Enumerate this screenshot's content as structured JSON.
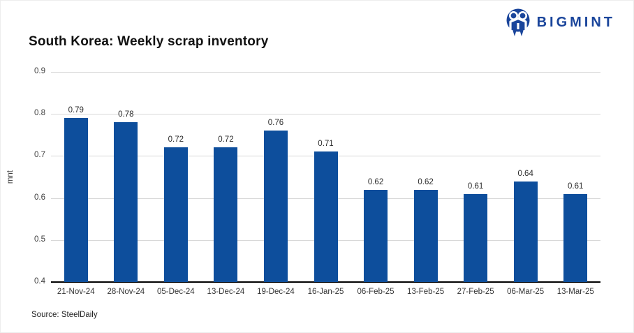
{
  "header": {
    "title": "South Korea: Weekly scrap inventory",
    "logo_text": "BIGMINT"
  },
  "source": {
    "label": "Source: SteelDaily"
  },
  "colors": {
    "bar": "#0d4e9c",
    "logo": "#1a459b",
    "gridline": "#d8d8d8",
    "axis_line": "#000000",
    "tick_text": "#404040"
  },
  "chart_data": {
    "type": "bar",
    "title": "South Korea: Weekly scrap inventory",
    "categories": [
      "21-Nov-24",
      "28-Nov-24",
      "05-Dec-24",
      "13-Dec-24",
      "19-Dec-24",
      "16-Jan-25",
      "06-Feb-25",
      "13-Feb-25",
      "27-Feb-25",
      "06-Mar-25",
      "13-Mar-25"
    ],
    "values": [
      0.79,
      0.78,
      0.72,
      0.72,
      0.76,
      0.71,
      0.62,
      0.62,
      0.61,
      0.64,
      0.61
    ],
    "bar_labels": [
      "0.79",
      "0.78",
      "0.72",
      "0.72",
      "0.76",
      "0.71",
      "0.62",
      "0.62",
      "0.61",
      "0.64",
      "0.61"
    ],
    "xlabel": "",
    "ylabel": "mnt",
    "ylim": [
      0.4,
      0.9
    ],
    "yticks": [
      "0.9",
      "0.8",
      "0.7",
      "0.6",
      "0.5",
      "0.4"
    ],
    "ytick_values": [
      0.9,
      0.8,
      0.7,
      0.6,
      0.5,
      0.4
    ],
    "grid": true,
    "legend": "none"
  }
}
